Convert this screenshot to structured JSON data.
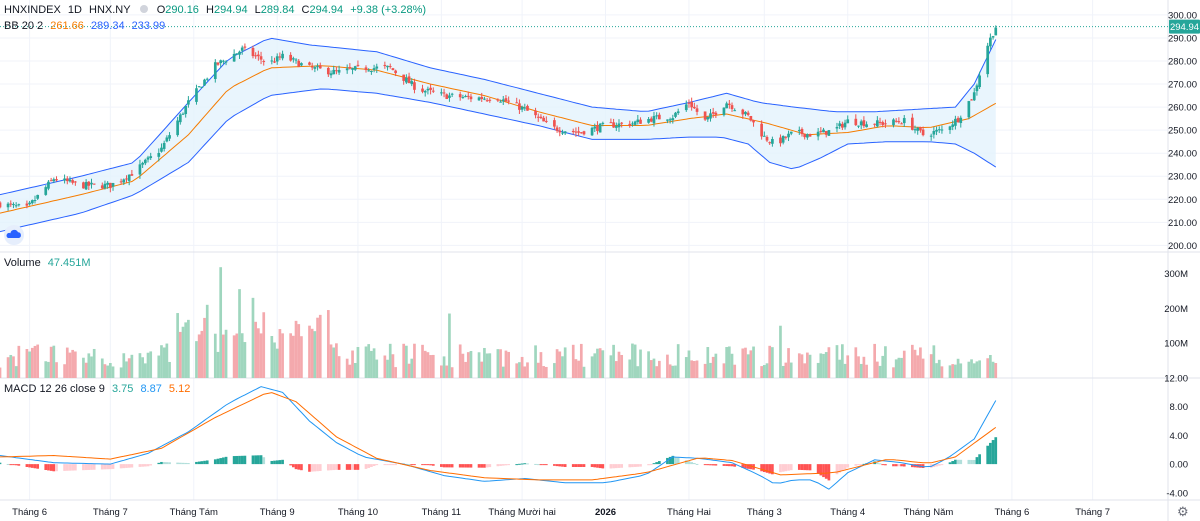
{
  "header": {
    "symbol": "HNXINDEX",
    "interval": "1D",
    "exchange": "HNX.NY",
    "open_label": "O",
    "open": "290.16",
    "high_label": "H",
    "high": "294.94",
    "low_label": "L",
    "low": "289.84",
    "close_label": "C",
    "close": "294.94",
    "change": "+9.38 (+3.28%)"
  },
  "bb_legend": {
    "name": "BB 20 2",
    "basis": "261.66",
    "upper": "289.34",
    "lower": "233.99"
  },
  "volume_legend": {
    "name": "Volume",
    "value": "47.451M"
  },
  "macd_legend": {
    "name": "MACD 12 26 close 9",
    "hist": "3.75",
    "macd": "8.87",
    "signal": "5.12"
  },
  "colors": {
    "up": "#26a69a",
    "down": "#ef5350",
    "vol_up": "#9fd6be",
    "vol_down": "#f4a9ad",
    "basis": "#f57c00",
    "band": "#2962ff",
    "band_fill": "#e3f2fd",
    "macd": "#2196f3",
    "signal": "#ff6d00",
    "last_price": "#26a69a",
    "grid": "#f0f3fa"
  },
  "chart_data": [
    {
      "type": "candlestick",
      "title": "HNXINDEX 1D HNX.NY",
      "last_price_label": "294.94",
      "ylim": [
        198,
        303
      ],
      "y_ticks": [
        "300.00",
        "290.00",
        "280.00",
        "270.00",
        "260.00",
        "250.00",
        "240.00",
        "230.00",
        "220.00",
        "210.00",
        "200.00"
      ],
      "x_tick_labels": [
        "Tháng 6",
        "Tháng 7",
        "Tháng Tám",
        "Tháng 9",
        "Tháng 10",
        "Tháng 11",
        "Tháng Mười hai",
        "2026",
        "Tháng Hai",
        "Tháng 3",
        "Tháng 4",
        "Tháng Năm",
        "Tháng 6",
        "Tháng 7"
      ],
      "x_tick_days": [
        1,
        31,
        62,
        93,
        123,
        154,
        184,
        215,
        246,
        274,
        305,
        335,
        366,
        396
      ],
      "day_range": [
        -10,
        424
      ],
      "close_anchors": [
        [
          -10,
          218
        ],
        [
          0,
          216
        ],
        [
          10,
          229
        ],
        [
          20,
          226
        ],
        [
          31,
          226
        ],
        [
          40,
          232
        ],
        [
          50,
          242
        ],
        [
          60,
          262
        ],
        [
          70,
          278
        ],
        [
          80,
          285
        ],
        [
          90,
          279
        ],
        [
          95,
          282
        ],
        [
          105,
          277
        ],
        [
          115,
          275
        ],
        [
          125,
          277
        ],
        [
          135,
          277
        ],
        [
          145,
          268
        ],
        [
          155,
          265
        ],
        [
          165,
          264
        ],
        [
          175,
          264
        ],
        [
          185,
          259
        ],
        [
          195,
          251
        ],
        [
          205,
          249
        ],
        [
          215,
          252
        ],
        [
          225,
          253
        ],
        [
          232,
          255
        ],
        [
          240,
          256
        ],
        [
          246,
          262
        ],
        [
          252,
          254
        ],
        [
          260,
          262
        ],
        [
          268,
          256
        ],
        [
          274,
          247
        ],
        [
          278,
          244
        ],
        [
          285,
          249
        ],
        [
          292,
          248
        ],
        [
          300,
          250
        ],
        [
          305,
          254
        ],
        [
          312,
          253
        ],
        [
          318,
          253
        ],
        [
          326,
          254
        ],
        [
          333,
          248
        ],
        [
          340,
          250
        ],
        [
          346,
          255
        ],
        [
          352,
          266
        ],
        [
          357,
          287
        ],
        [
          360,
          294.94
        ]
      ],
      "bb_basis_anchors": [
        [
          -10,
          214
        ],
        [
          20,
          222
        ],
        [
          40,
          228
        ],
        [
          60,
          248
        ],
        [
          75,
          268
        ],
        [
          90,
          277
        ],
        [
          110,
          278
        ],
        [
          130,
          276
        ],
        [
          150,
          270
        ],
        [
          170,
          265
        ],
        [
          190,
          258
        ],
        [
          210,
          252
        ],
        [
          230,
          252
        ],
        [
          246,
          255
        ],
        [
          260,
          257
        ],
        [
          275,
          253
        ],
        [
          290,
          248
        ],
        [
          305,
          249
        ],
        [
          320,
          252
        ],
        [
          335,
          251
        ],
        [
          350,
          255
        ],
        [
          360,
          261.66
        ]
      ],
      "bb_upper_anchors": [
        [
          -10,
          222
        ],
        [
          20,
          230
        ],
        [
          40,
          236
        ],
        [
          60,
          262
        ],
        [
          75,
          281
        ],
        [
          90,
          290
        ],
        [
          105,
          287
        ],
        [
          130,
          284
        ],
        [
          150,
          277
        ],
        [
          170,
          272
        ],
        [
          190,
          266
        ],
        [
          210,
          260
        ],
        [
          230,
          258
        ],
        [
          246,
          262
        ],
        [
          260,
          266
        ],
        [
          272,
          262
        ],
        [
          285,
          260
        ],
        [
          300,
          258
        ],
        [
          315,
          258
        ],
        [
          330,
          259
        ],
        [
          345,
          260
        ],
        [
          352,
          270
        ],
        [
          360,
          289.34
        ]
      ],
      "bb_lower_anchors": [
        [
          -10,
          206
        ],
        [
          20,
          214
        ],
        [
          40,
          222
        ],
        [
          60,
          236
        ],
        [
          75,
          255
        ],
        [
          90,
          265
        ],
        [
          110,
          268
        ],
        [
          130,
          266
        ],
        [
          150,
          262
        ],
        [
          170,
          257
        ],
        [
          190,
          252
        ],
        [
          210,
          246
        ],
        [
          230,
          246
        ],
        [
          246,
          247
        ],
        [
          258,
          247
        ],
        [
          268,
          244
        ],
        [
          276,
          236
        ],
        [
          285,
          233
        ],
        [
          295,
          238
        ],
        [
          305,
          244
        ],
        [
          320,
          245
        ],
        [
          335,
          245
        ],
        [
          345,
          244
        ],
        [
          352,
          240
        ],
        [
          360,
          233.99
        ]
      ]
    },
    {
      "type": "bar",
      "title": "Volume",
      "ylim": [
        0,
        330
      ],
      "y_ticks": [
        "300M",
        "200M",
        "100M"
      ],
      "last_value": "47.451M",
      "spikes": [
        [
          72,
          318
        ],
        [
          79,
          255
        ],
        [
          84,
          230
        ],
        [
          67,
          210
        ],
        [
          157,
          185
        ],
        [
          112,
          195
        ],
        [
          280,
          150
        ]
      ]
    },
    {
      "type": "histogram+line",
      "title": "MACD 12 26 close 9",
      "ylim": [
        -5,
        12
      ],
      "y_ticks": [
        "12.00",
        "8.00",
        "4.00",
        "0.00",
        "-4.00"
      ],
      "macd_anchors": [
        [
          -10,
          1.2
        ],
        [
          10,
          0.2
        ],
        [
          31,
          0.0
        ],
        [
          45,
          1.5
        ],
        [
          60,
          4.5
        ],
        [
          75,
          8.5
        ],
        [
          87,
          10.8
        ],
        [
          95,
          10.0
        ],
        [
          105,
          6.0
        ],
        [
          115,
          3.0
        ],
        [
          125,
          1.0
        ],
        [
          140,
          0.0
        ],
        [
          155,
          -1.6
        ],
        [
          170,
          -2.4
        ],
        [
          185,
          -2.0
        ],
        [
          200,
          -2.6
        ],
        [
          215,
          -2.6
        ],
        [
          230,
          -1.5
        ],
        [
          240,
          1.0
        ],
        [
          250,
          0.8
        ],
        [
          262,
          0.2
        ],
        [
          272,
          -1.5
        ],
        [
          278,
          -2.8
        ],
        [
          285,
          -2.2
        ],
        [
          292,
          -2.2
        ],
        [
          298,
          -3.5
        ],
        [
          305,
          -1.2
        ],
        [
          315,
          0.6
        ],
        [
          325,
          0.2
        ],
        [
          335,
          -0.5
        ],
        [
          342,
          0.8
        ],
        [
          352,
          3.5
        ],
        [
          360,
          8.87
        ]
      ],
      "signal_anchors": [
        [
          -10,
          1.0
        ],
        [
          10,
          1.2
        ],
        [
          31,
          0.7
        ],
        [
          50,
          2.2
        ],
        [
          70,
          6.5
        ],
        [
          90,
          10.1
        ],
        [
          100,
          8.7
        ],
        [
          115,
          3.8
        ],
        [
          130,
          0.8
        ],
        [
          150,
          -0.9
        ],
        [
          170,
          -1.9
        ],
        [
          190,
          -2.2
        ],
        [
          210,
          -2.2
        ],
        [
          230,
          -1.2
        ],
        [
          250,
          0.9
        ],
        [
          262,
          0.5
        ],
        [
          280,
          -1.5
        ],
        [
          300,
          -1.2
        ],
        [
          320,
          0.7
        ],
        [
          335,
          0.1
        ],
        [
          345,
          1.0
        ],
        [
          360,
          5.12
        ]
      ],
      "last_hist": "3.75"
    }
  ]
}
